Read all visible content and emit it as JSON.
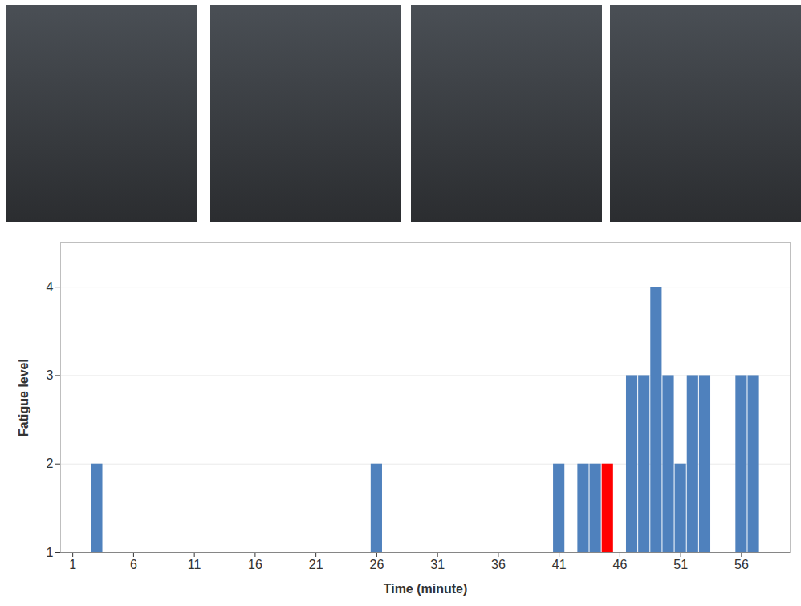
{
  "chart_data": {
    "type": "bar",
    "x_label": "Time (minute)",
    "y_label": "Fatigue level",
    "x": [
      3,
      26,
      41,
      43,
      44,
      45,
      47,
      48,
      49,
      50,
      51,
      52,
      53,
      56,
      57
    ],
    "values": [
      2,
      2,
      2,
      2,
      2,
      2,
      3,
      3,
      4,
      3,
      2,
      3,
      3,
      3,
      3
    ],
    "colors": [
      "#4f81bd",
      "#4f81bd",
      "#4f81bd",
      "#4f81bd",
      "#4f81bd",
      "#ff0000",
      "#4f81bd",
      "#4f81bd",
      "#4f81bd",
      "#4f81bd",
      "#4f81bd",
      "#4f81bd",
      "#4f81bd",
      "#4f81bd",
      "#4f81bd"
    ],
    "xlim": [
      0,
      60
    ],
    "xticks": [
      1,
      6,
      11,
      16,
      21,
      26,
      31,
      36,
      41,
      46,
      51,
      56
    ],
    "ylim": [
      1,
      4.5
    ],
    "yticks": [
      1,
      2,
      3,
      4
    ],
    "grid": true
  }
}
